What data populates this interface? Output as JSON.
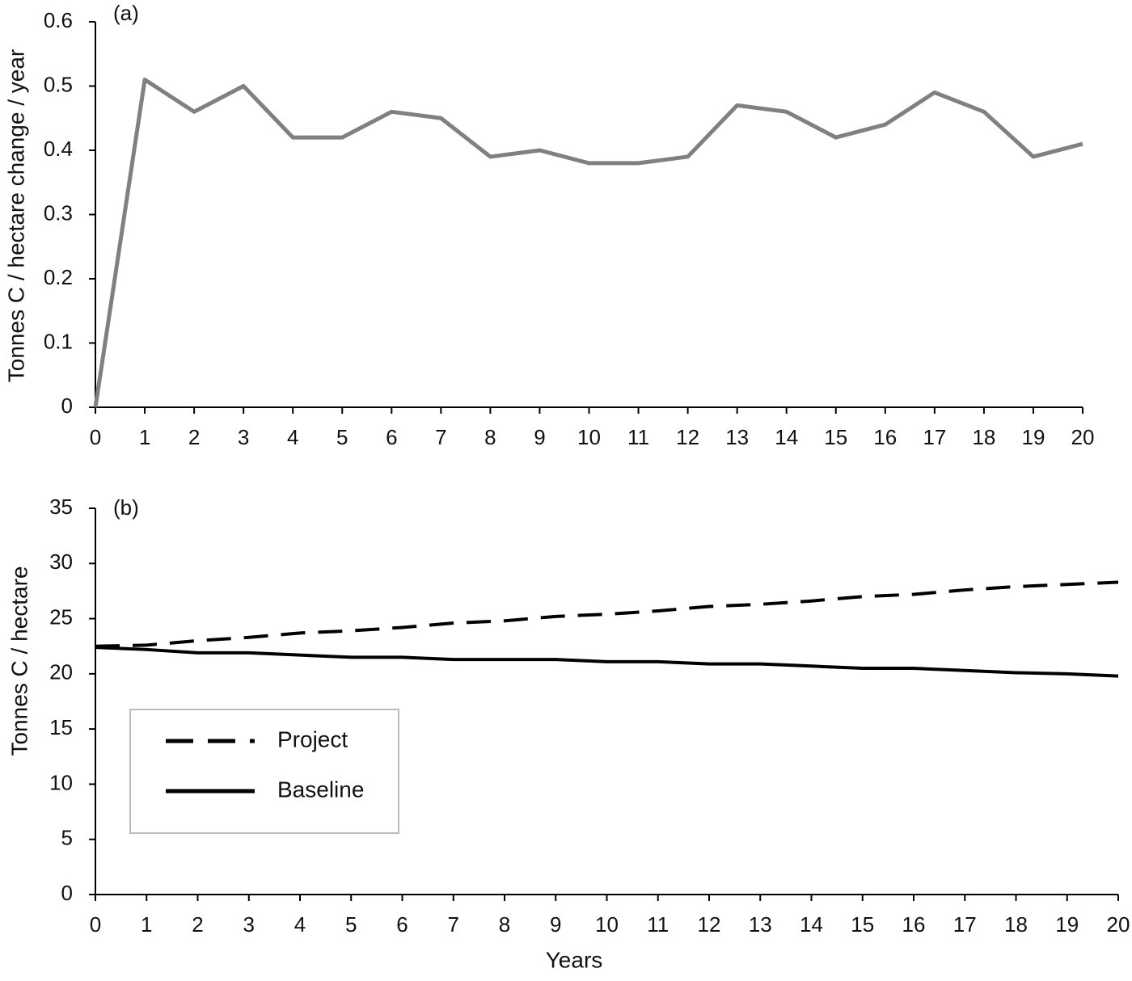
{
  "chart_data": [
    {
      "type": "line",
      "annotation": "(a)",
      "ylabel": "Tonnes C / hectare change / year",
      "x": [
        0,
        1,
        2,
        3,
        4,
        5,
        6,
        7,
        8,
        9,
        10,
        11,
        12,
        13,
        14,
        15,
        16,
        17,
        18,
        19,
        20
      ],
      "series": [
        {
          "color": "#808080",
          "line_style": "solid",
          "values": [
            0,
            0.51,
            0.46,
            0.5,
            0.42,
            0.42,
            0.46,
            0.45,
            0.39,
            0.4,
            0.38,
            0.38,
            0.39,
            0.47,
            0.46,
            0.42,
            0.44,
            0.49,
            0.46,
            0.39,
            0.41
          ]
        }
      ],
      "xlim": [
        0,
        20
      ],
      "xticks": [
        0,
        1,
        2,
        3,
        4,
        5,
        6,
        7,
        8,
        9,
        10,
        11,
        12,
        13,
        14,
        15,
        16,
        17,
        18,
        19,
        20
      ],
      "ylim": [
        0,
        0.6
      ],
      "yticks": [
        0,
        0.1,
        0.2,
        0.3,
        0.4,
        0.5,
        0.6
      ],
      "grid": false
    },
    {
      "type": "line",
      "annotation": "(b)",
      "ylabel": "Tonnes C / hectare",
      "xlabel": "Years",
      "x": [
        0,
        1,
        2,
        3,
        4,
        5,
        6,
        7,
        8,
        9,
        10,
        11,
        12,
        13,
        14,
        15,
        16,
        17,
        18,
        19,
        20
      ],
      "series": [
        {
          "name": "Project",
          "color": "#000000",
          "line_style": "dashed",
          "values": [
            22.5,
            22.6,
            23.0,
            23.3,
            23.7,
            23.9,
            24.2,
            24.6,
            24.8,
            25.2,
            25.4,
            25.7,
            26.1,
            26.3,
            26.6,
            27.0,
            27.2,
            27.6,
            27.9,
            28.1,
            28.3
          ]
        },
        {
          "name": "Baseline",
          "color": "#000000",
          "line_style": "solid",
          "values": [
            22.4,
            22.2,
            21.9,
            21.9,
            21.7,
            21.5,
            21.5,
            21.3,
            21.3,
            21.3,
            21.1,
            21.1,
            20.9,
            20.9,
            20.7,
            20.5,
            20.5,
            20.3,
            20.1,
            20.0,
            19.8
          ]
        }
      ],
      "xlim": [
        0,
        20
      ],
      "xticks": [
        0,
        1,
        2,
        3,
        4,
        5,
        6,
        7,
        8,
        9,
        10,
        11,
        12,
        13,
        14,
        15,
        16,
        17,
        18,
        19,
        20
      ],
      "ylim": [
        0,
        35
      ],
      "yticks": [
        0,
        5,
        10,
        15,
        20,
        25,
        30,
        35
      ],
      "grid": false,
      "legend": "lower-left"
    }
  ]
}
